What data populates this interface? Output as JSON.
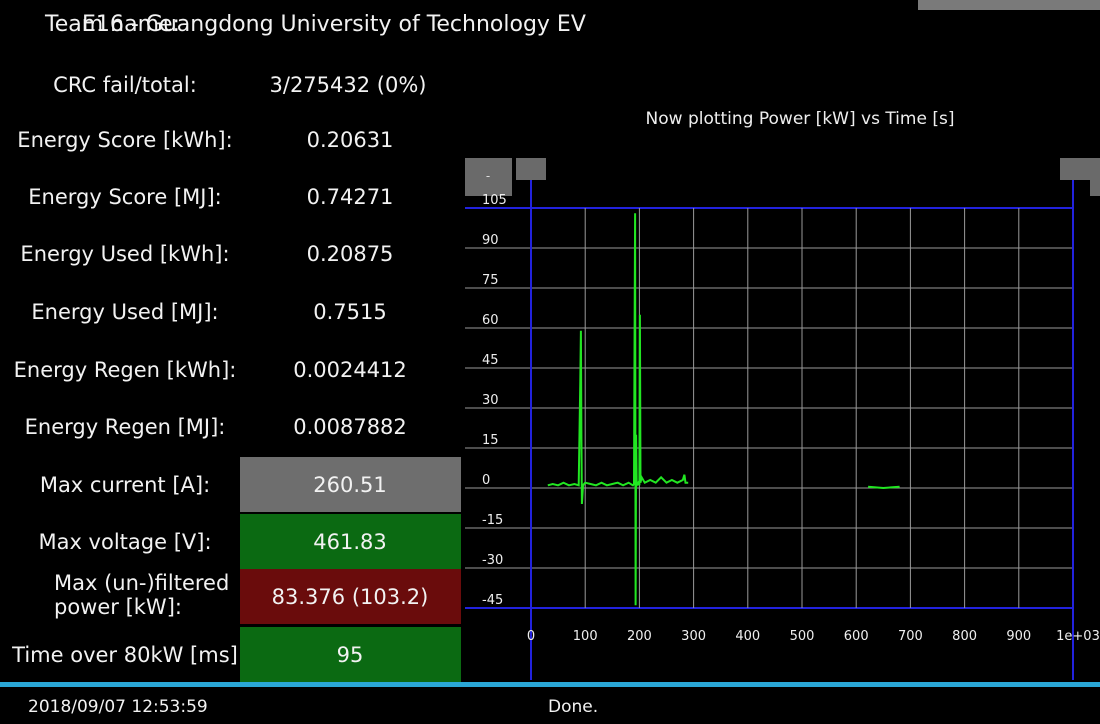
{
  "header": {
    "label": "Team name:",
    "value": "E16 - Guangdong University of Technology EV"
  },
  "stats": [
    {
      "label": "CRC fail/total:",
      "value": "3/275432 (0%)"
    },
    {
      "label": "Energy Score [kWh]:",
      "value": "0.20631"
    },
    {
      "label": "Energy Score [MJ]:",
      "value": "0.74271"
    },
    {
      "label": "Energy Used [kWh]:",
      "value": "0.20875"
    },
    {
      "label": "Energy Used [MJ]:",
      "value": "0.7515"
    },
    {
      "label": "Energy Regen [kWh]:",
      "value": "0.0024412"
    },
    {
      "label": "Energy Regen [MJ]:",
      "value": "0.0087882"
    },
    {
      "label": "Max current [A]:",
      "value": "260.51",
      "color": "#6e6e6e"
    },
    {
      "label": "Max voltage [V]:",
      "value": "461.83",
      "color": "#0b6a12"
    },
    {
      "label": "Max (un-)filtered power [kW]:",
      "value": "83.376 (103.2)",
      "color": "#6a0c0c"
    },
    {
      "label": "Time over 80kW [ms]",
      "value": "95",
      "color": "#0b6a12"
    }
  ],
  "chart_data": {
    "type": "line",
    "title": "Now plotting Power [kW] vs Time [s]",
    "color": "#22e622",
    "x": [
      31,
      40,
      50,
      60,
      70,
      80,
      88,
      91,
      92,
      93,
      94,
      96,
      100,
      110,
      120,
      130,
      140,
      150,
      160,
      170,
      180,
      188,
      190,
      191,
      192,
      193,
      194,
      195,
      198,
      200,
      201,
      202,
      204,
      210,
      220,
      230,
      240,
      250,
      260,
      270,
      280,
      283,
      285,
      290,
      600,
      622,
      650,
      680
    ],
    "values": [
      1,
      1.5,
      1,
      2,
      1,
      1.5,
      1,
      40,
      59,
      20,
      -6,
      1,
      2,
      1.5,
      1,
      2,
      1,
      1.5,
      2,
      1,
      2,
      1,
      1.5,
      50,
      103,
      -44,
      20,
      1,
      2,
      1,
      65,
      2,
      4,
      2,
      3,
      2,
      4,
      2,
      3,
      2,
      3,
      5,
      2,
      2,
      null,
      0.5,
      0,
      0.5
    ],
    "xlim": [
      0,
      1000
    ],
    "ylim": [
      -45,
      105
    ],
    "xticks": [
      0,
      100,
      200,
      300,
      400,
      500,
      600,
      700,
      800,
      900,
      {
        "value": 1000,
        "label": "1e+03"
      }
    ],
    "yticks": [
      -45,
      -30,
      -15,
      0,
      15,
      30,
      45,
      60,
      75,
      90,
      105
    ],
    "grid": true
  },
  "status": {
    "time": "2018/09/07 12:53:59",
    "message": "Done."
  },
  "button": "-"
}
